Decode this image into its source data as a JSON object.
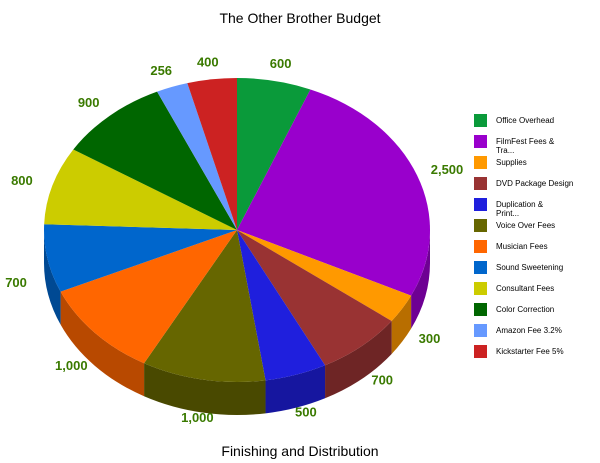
{
  "chart_data": {
    "type": "pie",
    "title": "The Other Brother Budget",
    "subtitle": "Finishing and Distribution",
    "legend_position": "right",
    "slices": [
      {
        "label": "Office Overhead",
        "value": 600,
        "value_label": "600",
        "color": "#0a9a3a"
      },
      {
        "label": "FilmFest Fees & Tra...",
        "value": 2500,
        "value_label": "2,500",
        "color": "#9900cc"
      },
      {
        "label": "Supplies",
        "value": 300,
        "value_label": "300",
        "color": "#ff9900"
      },
      {
        "label": "DVD Package Design",
        "value": 700,
        "value_label": "700",
        "color": "#993333"
      },
      {
        "label": "Duplication & Print...",
        "value": 500,
        "value_label": "500",
        "color": "#1f1fdd"
      },
      {
        "label": "Voice Over Fees",
        "value": 1000,
        "value_label": "1,000",
        "color": "#666600"
      },
      {
        "label": "Musician Fees",
        "value": 1000,
        "value_label": "1,000",
        "color": "#ff6600"
      },
      {
        "label": "Sound Sweetening",
        "value": 700,
        "value_label": "700",
        "color": "#0066cc"
      },
      {
        "label": "Consultant Fees",
        "value": 800,
        "value_label": "800",
        "color": "#cccc00"
      },
      {
        "label": "Color Correction",
        "value": 900,
        "value_label": "900",
        "color": "#006600"
      },
      {
        "label": "Amazon Fee 3.2%",
        "value": 256,
        "value_label": "256",
        "color": "#6699ff"
      },
      {
        "label": "Kickstarter Fee 5%",
        "value": 400,
        "value_label": "400",
        "color": "#cc2222"
      }
    ]
  }
}
